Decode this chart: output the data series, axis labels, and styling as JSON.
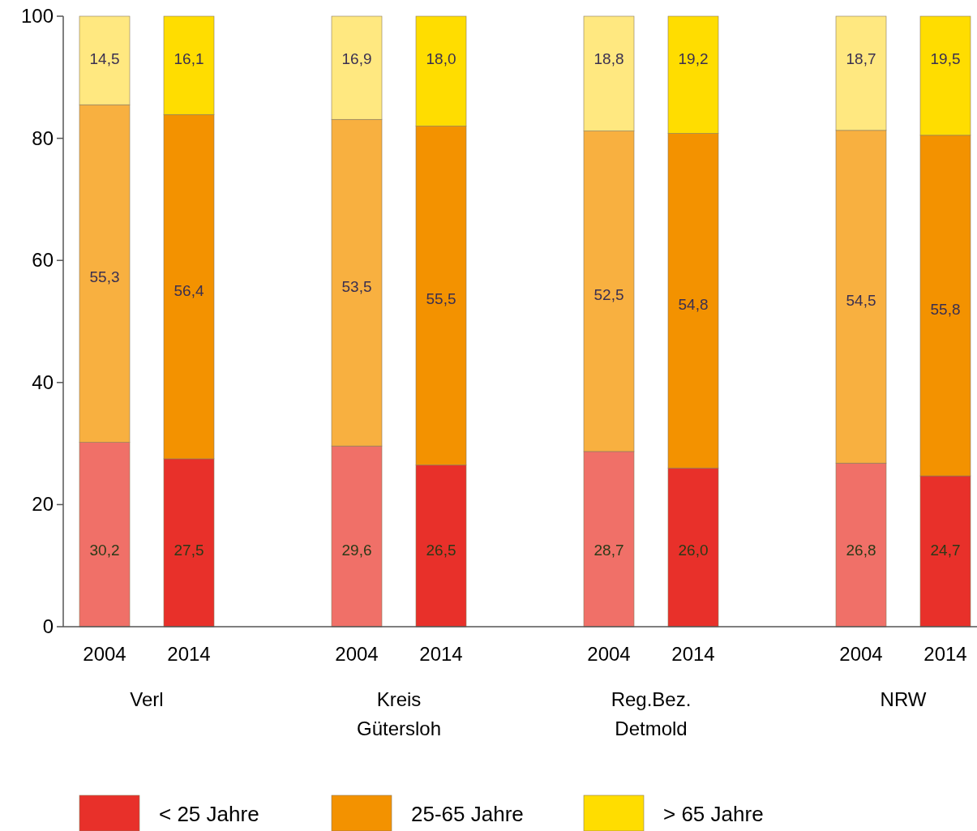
{
  "chart_data": {
    "type": "bar",
    "stacked": true,
    "categories": [
      "2004",
      "2014",
      "2004",
      "2014",
      "2004",
      "2014",
      "2004",
      "2014"
    ],
    "series": [
      {
        "name": "< 25 Jahre",
        "color": "#e8302a",
        "colors": [
          "#f07068",
          "#e8302a",
          "#f07068",
          "#e8302a",
          "#f07068",
          "#e8302a",
          "#f07068",
          "#e8302a"
        ],
        "values": [
          30.2,
          27.5,
          29.6,
          26.5,
          28.7,
          26.0,
          26.8,
          24.7
        ],
        "value_labels": [
          "30,2",
          "27,5",
          "29,6",
          "26,5",
          "28,7",
          "26,0",
          "26,8",
          "24,7"
        ]
      },
      {
        "name": "25-65 Jahre",
        "color": "#f39200",
        "colors": [
          "#f8b040",
          "#f39200",
          "#f8b040",
          "#f39200",
          "#f8b040",
          "#f39200",
          "#f8b040",
          "#f39200"
        ],
        "values": [
          55.3,
          56.4,
          53.5,
          55.5,
          52.5,
          54.8,
          54.5,
          55.8
        ],
        "value_labels": [
          "55,3",
          "56,4",
          "53,5",
          "55,5",
          "52,5",
          "54,8",
          "54,5",
          "55,8"
        ]
      },
      {
        "name": "> 65 Jahre",
        "color": "#ffdd00",
        "colors": [
          "#ffe880",
          "#ffdd00",
          "#ffe880",
          "#ffdd00",
          "#ffe880",
          "#ffdd00",
          "#ffe880",
          "#ffdd00"
        ],
        "values": [
          14.5,
          16.1,
          16.9,
          18.0,
          18.8,
          19.2,
          18.7,
          19.5
        ],
        "value_labels": [
          "14,5",
          "16,1",
          "16,9",
          "18,0",
          "18,8",
          "19,2",
          "18,7",
          "19,5"
        ]
      }
    ],
    "annotations": [
      "Verl",
      "Kreis\nGütersloh",
      "Reg.Bez.\nDetmold",
      "NRW"
    ],
    "ylim": [
      0,
      100
    ],
    "yticks": [
      0,
      20,
      40,
      60,
      80,
      100
    ],
    "grid": false,
    "legend": "bottom"
  }
}
